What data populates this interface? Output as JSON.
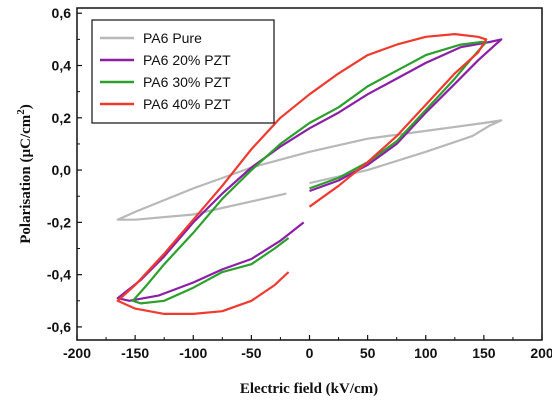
{
  "chart_data": {
    "type": "line",
    "title": "",
    "xlabel": "Electric field (kV/cm)",
    "ylabel": "Polarisation (µC/cm²)",
    "ylabel_parts": {
      "main": "Polarisation (µC/cm",
      "sup": "2",
      "end": ")"
    },
    "xlim": [
      -200,
      200
    ],
    "ylim": [
      -0.65,
      0.62
    ],
    "x_ticks": [
      -200,
      -150,
      -100,
      -50,
      0,
      50,
      100,
      150,
      200
    ],
    "x_tick_labels": [
      "-200",
      "-150",
      "-100",
      "-50",
      "0",
      "50",
      "100",
      "150",
      "200"
    ],
    "y_ticks": [
      -0.6,
      -0.4,
      -0.2,
      0.0,
      0.2,
      0.4,
      0.6
    ],
    "y_tick_labels": [
      "-0,6",
      "-0,4",
      "-0,2",
      "0,0",
      "0,2",
      "0,4",
      "0,6"
    ],
    "grid": false,
    "legend_position": "top-left",
    "series": [
      {
        "name": "PA6 Pure",
        "color": "#b8b8b8",
        "points": [
          [
            0,
            -0.05
          ],
          [
            50,
            0.0
          ],
          [
            100,
            0.07
          ],
          [
            140,
            0.13
          ],
          [
            155,
            0.17
          ],
          [
            165,
            0.19
          ],
          [
            150,
            0.18
          ],
          [
            100,
            0.15
          ],
          [
            50,
            0.12
          ],
          [
            0,
            0.07
          ],
          [
            -50,
            0.01
          ],
          [
            -100,
            -0.07
          ],
          [
            -150,
            -0.16
          ],
          [
            -165,
            -0.19
          ],
          [
            -150,
            -0.19
          ],
          [
            -100,
            -0.17
          ],
          [
            -50,
            -0.12
          ],
          [
            -20,
            -0.09
          ]
        ]
      },
      {
        "name": "PA6 20% PZT",
        "color": "#8b1fa5",
        "points": [
          [
            0,
            -0.08
          ],
          [
            25,
            -0.04
          ],
          [
            50,
            0.02
          ],
          [
            75,
            0.1
          ],
          [
            100,
            0.22
          ],
          [
            125,
            0.33
          ],
          [
            145,
            0.42
          ],
          [
            160,
            0.48
          ],
          [
            165,
            0.5
          ],
          [
            155,
            0.49
          ],
          [
            130,
            0.47
          ],
          [
            100,
            0.41
          ],
          [
            75,
            0.35
          ],
          [
            50,
            0.29
          ],
          [
            25,
            0.22
          ],
          [
            0,
            0.16
          ],
          [
            -25,
            0.09
          ],
          [
            -50,
            0.01
          ],
          [
            -75,
            -0.09
          ],
          [
            -100,
            -0.2
          ],
          [
            -125,
            -0.33
          ],
          [
            -145,
            -0.42
          ],
          [
            -165,
            -0.49
          ],
          [
            -155,
            -0.5
          ],
          [
            -130,
            -0.48
          ],
          [
            -100,
            -0.43
          ],
          [
            -75,
            -0.38
          ],
          [
            -50,
            -0.34
          ],
          [
            -25,
            -0.27
          ],
          [
            -5,
            -0.2
          ]
        ]
      },
      {
        "name": "PA6 30% PZT",
        "color": "#2ca02c",
        "points": [
          [
            0,
            -0.07
          ],
          [
            25,
            -0.03
          ],
          [
            50,
            0.03
          ],
          [
            75,
            0.11
          ],
          [
            100,
            0.23
          ],
          [
            125,
            0.35
          ],
          [
            140,
            0.43
          ],
          [
            152,
            0.49
          ],
          [
            148,
            0.49
          ],
          [
            130,
            0.48
          ],
          [
            100,
            0.44
          ],
          [
            75,
            0.38
          ],
          [
            50,
            0.32
          ],
          [
            25,
            0.24
          ],
          [
            0,
            0.18
          ],
          [
            -25,
            0.1
          ],
          [
            -50,
            0.0
          ],
          [
            -75,
            -0.11
          ],
          [
            -100,
            -0.24
          ],
          [
            -125,
            -0.36
          ],
          [
            -140,
            -0.44
          ],
          [
            -152,
            -0.5
          ],
          [
            -145,
            -0.51
          ],
          [
            -125,
            -0.5
          ],
          [
            -100,
            -0.45
          ],
          [
            -75,
            -0.39
          ],
          [
            -50,
            -0.36
          ],
          [
            -30,
            -0.3
          ],
          [
            -18,
            -0.26
          ]
        ]
      },
      {
        "name": "PA6 40% PZT",
        "color": "#ee3a2f",
        "points": [
          [
            0,
            -0.14
          ],
          [
            25,
            -0.06
          ],
          [
            50,
            0.03
          ],
          [
            75,
            0.13
          ],
          [
            100,
            0.25
          ],
          [
            125,
            0.37
          ],
          [
            145,
            0.45
          ],
          [
            152,
            0.5
          ],
          [
            145,
            0.51
          ],
          [
            125,
            0.52
          ],
          [
            100,
            0.51
          ],
          [
            75,
            0.48
          ],
          [
            50,
            0.44
          ],
          [
            25,
            0.37
          ],
          [
            0,
            0.29
          ],
          [
            -25,
            0.2
          ],
          [
            -50,
            0.08
          ],
          [
            -75,
            -0.06
          ],
          [
            -100,
            -0.19
          ],
          [
            -125,
            -0.32
          ],
          [
            -150,
            -0.44
          ],
          [
            -165,
            -0.5
          ],
          [
            -150,
            -0.53
          ],
          [
            -125,
            -0.55
          ],
          [
            -100,
            -0.55
          ],
          [
            -75,
            -0.54
          ],
          [
            -50,
            -0.5
          ],
          [
            -30,
            -0.44
          ],
          [
            -18,
            -0.39
          ]
        ]
      }
    ]
  }
}
